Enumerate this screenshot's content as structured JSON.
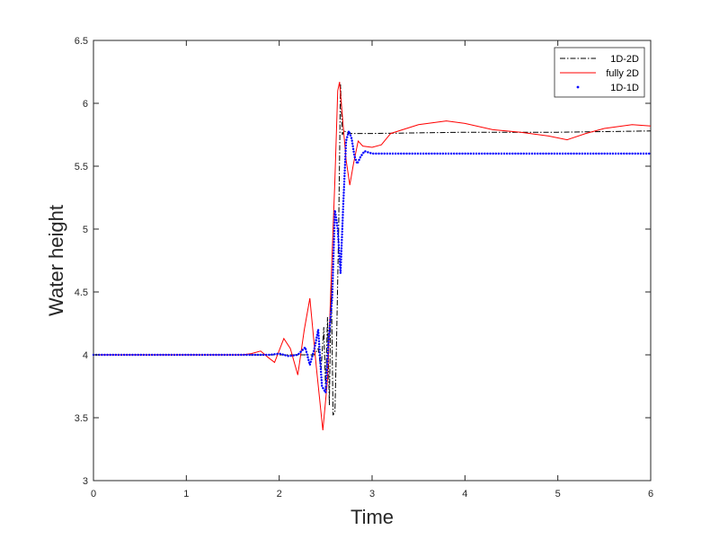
{
  "chart_data": {
    "type": "line",
    "title": "",
    "xlabel": "Time",
    "ylabel": "Water height",
    "xlim": [
      0,
      6
    ],
    "ylim": [
      3,
      6.5
    ],
    "xticks": [
      0,
      1,
      2,
      3,
      4,
      5,
      6
    ],
    "yticks": [
      3,
      3.5,
      4,
      4.5,
      5,
      5.5,
      6,
      6.5
    ],
    "xtick_labels": [
      "0",
      "1",
      "2",
      "3",
      "4",
      "5",
      "6"
    ],
    "ytick_labels": [
      "3",
      "3.5",
      "4",
      "4.5",
      "5",
      "5.5",
      "6",
      "6.5"
    ],
    "grid": false,
    "legend_position": "top-right",
    "series": [
      {
        "name": "1D-2D",
        "color": "#000000",
        "style": "dash-dot",
        "points": [
          [
            0,
            4.0
          ],
          [
            2.2,
            4.0
          ],
          [
            2.38,
            4.0
          ],
          [
            2.42,
            4.05
          ],
          [
            2.45,
            3.88
          ],
          [
            2.48,
            4.22
          ],
          [
            2.5,
            3.72
          ],
          [
            2.52,
            4.3
          ],
          [
            2.54,
            3.6
          ],
          [
            2.56,
            4.6
          ],
          [
            2.58,
            3.52
          ],
          [
            2.6,
            3.55
          ],
          [
            2.62,
            4.2
          ],
          [
            2.64,
            5.0
          ],
          [
            2.66,
            6.15
          ],
          [
            2.68,
            5.75
          ],
          [
            2.7,
            5.78
          ],
          [
            2.75,
            5.76
          ],
          [
            3.0,
            5.76
          ],
          [
            4.0,
            5.77
          ],
          [
            5.0,
            5.77
          ],
          [
            6.0,
            5.78
          ]
        ]
      },
      {
        "name": "fully 2D",
        "color": "#ff0000",
        "style": "solid",
        "points": [
          [
            0,
            4.0
          ],
          [
            1.6,
            4.0
          ],
          [
            1.7,
            4.01
          ],
          [
            1.8,
            4.03
          ],
          [
            1.88,
            3.98
          ],
          [
            1.95,
            3.94
          ],
          [
            2.05,
            4.13
          ],
          [
            2.12,
            4.05
          ],
          [
            2.2,
            3.84
          ],
          [
            2.27,
            4.2
          ],
          [
            2.33,
            4.45
          ],
          [
            2.4,
            3.9
          ],
          [
            2.47,
            3.4
          ],
          [
            2.52,
            3.8
          ],
          [
            2.56,
            4.6
          ],
          [
            2.6,
            5.4
          ],
          [
            2.63,
            6.1
          ],
          [
            2.65,
            6.17
          ],
          [
            2.68,
            5.9
          ],
          [
            2.72,
            5.55
          ],
          [
            2.76,
            5.35
          ],
          [
            2.8,
            5.52
          ],
          [
            2.85,
            5.7
          ],
          [
            2.9,
            5.66
          ],
          [
            3.0,
            5.65
          ],
          [
            3.1,
            5.67
          ],
          [
            3.2,
            5.76
          ],
          [
            3.5,
            5.83
          ],
          [
            3.8,
            5.86
          ],
          [
            4.0,
            5.84
          ],
          [
            4.3,
            5.79
          ],
          [
            4.6,
            5.77
          ],
          [
            4.9,
            5.74
          ],
          [
            5.1,
            5.71
          ],
          [
            5.3,
            5.76
          ],
          [
            5.5,
            5.8
          ],
          [
            5.8,
            5.83
          ],
          [
            6.0,
            5.82
          ]
        ]
      },
      {
        "name": "1D-1D",
        "color": "#0000ff",
        "style": "dotted",
        "points": [
          [
            0,
            4.0
          ],
          [
            1.9,
            4.0
          ],
          [
            2.0,
            4.01
          ],
          [
            2.1,
            3.99
          ],
          [
            2.2,
            4.0
          ],
          [
            2.28,
            4.06
          ],
          [
            2.33,
            3.92
          ],
          [
            2.38,
            4.05
          ],
          [
            2.42,
            4.2
          ],
          [
            2.46,
            3.75
          ],
          [
            2.5,
            3.7
          ],
          [
            2.53,
            4.1
          ],
          [
            2.57,
            4.45
          ],
          [
            2.6,
            5.15
          ],
          [
            2.63,
            5.0
          ],
          [
            2.66,
            4.65
          ],
          [
            2.69,
            5.2
          ],
          [
            2.72,
            5.7
          ],
          [
            2.75,
            5.78
          ],
          [
            2.78,
            5.72
          ],
          [
            2.81,
            5.58
          ],
          [
            2.84,
            5.52
          ],
          [
            2.88,
            5.58
          ],
          [
            2.92,
            5.62
          ],
          [
            3.0,
            5.6
          ],
          [
            4.0,
            5.6
          ],
          [
            5.0,
            5.6
          ],
          [
            6.0,
            5.6
          ]
        ]
      }
    ]
  }
}
